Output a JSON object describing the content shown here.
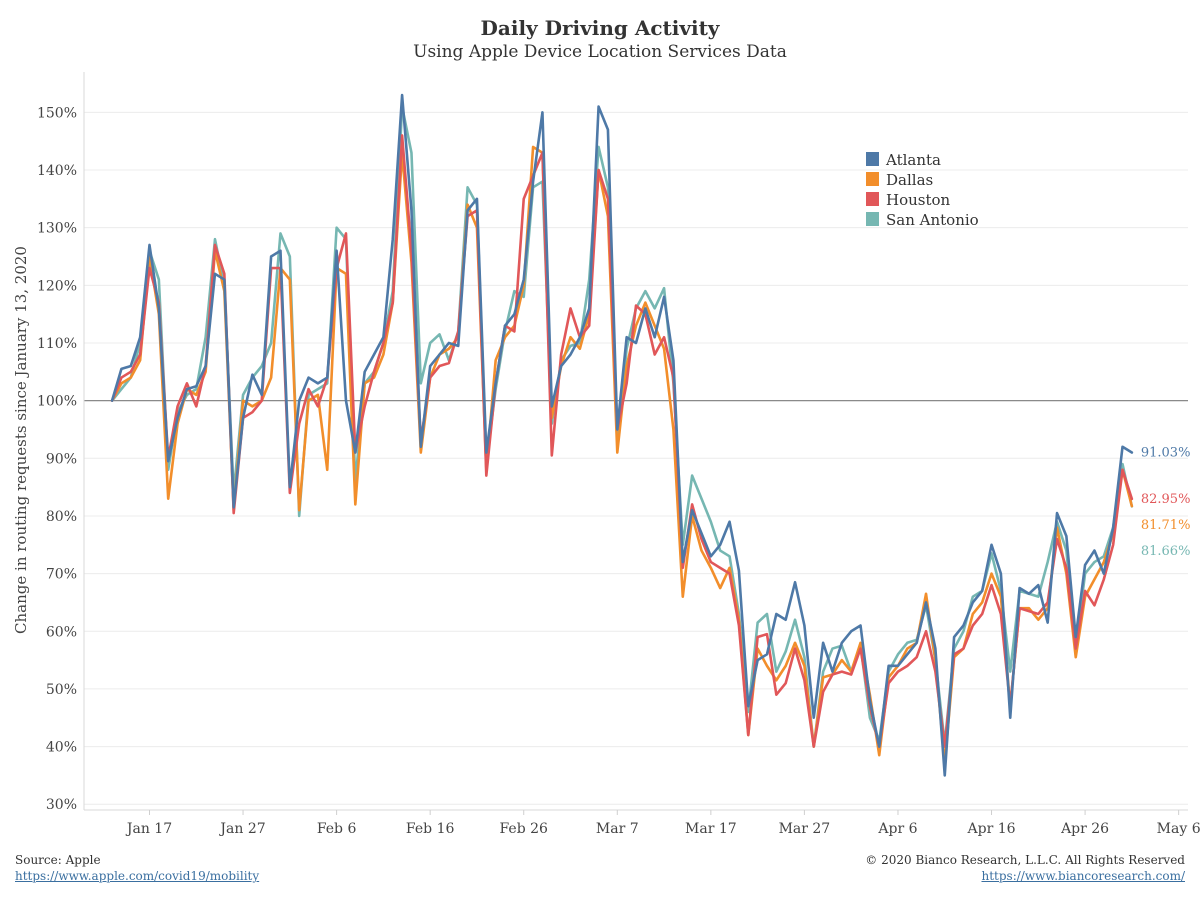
{
  "header": {
    "title": "Daily Driving Activity",
    "subtitle": "Using Apple Device Location Services Data"
  },
  "footer": {
    "source_label": "Source: Apple",
    "source_url": "https://www.apple.com/covid19/mobility",
    "copyright": "© 2020 Bianco Research, L.L.C. All Rights Reserved",
    "site_url": "https://www.biancoresearch.com/"
  },
  "chart_data": {
    "type": "line",
    "title": "Daily Driving Activity",
    "subtitle": "Using Apple Device Location Services Data",
    "ylabel": "Change in routing requests since January 13, 2020",
    "xlabel": "",
    "x_start": "2020-01-13",
    "x_end": "2020-05-03",
    "xlim": [
      "2020-01-10",
      "2020-05-07"
    ],
    "ylim": [
      29,
      157
    ],
    "y_ticks": [
      30,
      40,
      50,
      60,
      70,
      80,
      90,
      100,
      110,
      120,
      130,
      140,
      150
    ],
    "y_tick_labels": [
      "30%",
      "40%",
      "50%",
      "60%",
      "70%",
      "80%",
      "90%",
      "100%",
      "110%",
      "120%",
      "130%",
      "140%",
      "150%"
    ],
    "x_ticks": [
      {
        "date": "2020-01-17",
        "label": "Jan 17"
      },
      {
        "date": "2020-01-27",
        "label": "Jan 27"
      },
      {
        "date": "2020-02-06",
        "label": "Feb 6"
      },
      {
        "date": "2020-02-16",
        "label": "Feb 16"
      },
      {
        "date": "2020-02-26",
        "label": "Feb 26"
      },
      {
        "date": "2020-03-07",
        "label": "Mar 7"
      },
      {
        "date": "2020-03-17",
        "label": "Mar 17"
      },
      {
        "date": "2020-03-27",
        "label": "Mar 27"
      },
      {
        "date": "2020-04-06",
        "label": "Apr 6"
      },
      {
        "date": "2020-04-16",
        "label": "Apr 16"
      },
      {
        "date": "2020-04-26",
        "label": "Apr 26"
      },
      {
        "date": "2020-05-06",
        "label": "May 6"
      }
    ],
    "reference_line": 100,
    "grid": true,
    "legend_position": "top-right",
    "series": [
      {
        "name": "Atlanta",
        "color": "#4e79a7",
        "end_label": "91.03%",
        "values": [
          100,
          105.5,
          106,
          111,
          127,
          116,
          89.5,
          97,
          102,
          102.5,
          106,
          122,
          121,
          81.5,
          97,
          104.5,
          101,
          125,
          126,
          85,
          100,
          104,
          103,
          104,
          126,
          100,
          91,
          105,
          108,
          111,
          128,
          153,
          133,
          92,
          106,
          108,
          110,
          109.5,
          133,
          135,
          91,
          103,
          113,
          115,
          121,
          138,
          150,
          99,
          106,
          108,
          111,
          116,
          151,
          147,
          95,
          111,
          110,
          116,
          111,
          118,
          107,
          72,
          81,
          77,
          73,
          75,
          79,
          70.5,
          47,
          55,
          56,
          63,
          62,
          68.5,
          61,
          45,
          58,
          53,
          58,
          60,
          61,
          48,
          40,
          54,
          54,
          56,
          58,
          65,
          57,
          35,
          59,
          61,
          65,
          67,
          75,
          70,
          45,
          67.5,
          66.5,
          68,
          61.5,
          80.5,
          76.5,
          59,
          71.5,
          74,
          70,
          78,
          92,
          91
        ]
      },
      {
        "name": "Dallas",
        "color": "#f28e2b",
        "end_label": "81.71%",
        "values": [
          100,
          103,
          104,
          107,
          125,
          115,
          83,
          96,
          102,
          101,
          105,
          126,
          119,
          81,
          100,
          99,
          100,
          104,
          123,
          121,
          81,
          100,
          101,
          88,
          123,
          122,
          82,
          103,
          104,
          108,
          117,
          143,
          124,
          91,
          104,
          108,
          109,
          111,
          134,
          130,
          88,
          107,
          111,
          113,
          120,
          144,
          143,
          97,
          106,
          111,
          109,
          115,
          140,
          132,
          91,
          106,
          113,
          117,
          113,
          109,
          95,
          66,
          80,
          74,
          71,
          67.5,
          71,
          62,
          42,
          57,
          54,
          51.5,
          54,
          58,
          54,
          40,
          52,
          52.5,
          55,
          53,
          58,
          49,
          38.5,
          52,
          54,
          57,
          58,
          66.5,
          55,
          37,
          55.5,
          57,
          63,
          65,
          70,
          66,
          47,
          64,
          64,
          62,
          64,
          78,
          70,
          55.5,
          66,
          69,
          72,
          77,
          88,
          81.71
        ]
      },
      {
        "name": "Houston",
        "color": "#e15759",
        "end_label": "82.95%",
        "values": [
          100,
          104,
          105,
          108,
          123,
          117,
          90,
          99,
          103,
          99,
          106,
          127,
          122,
          80.5,
          97,
          98,
          100,
          123,
          123,
          84,
          96,
          102,
          99,
          104,
          123,
          129,
          91,
          99,
          105,
          110,
          117,
          146,
          126,
          93,
          104,
          106,
          106.5,
          112,
          132,
          133,
          87,
          103,
          113,
          112,
          135,
          139,
          143,
          90.5,
          108,
          116,
          111,
          113,
          140,
          135,
          95,
          103,
          116.5,
          115,
          108,
          111,
          104,
          71,
          82,
          76,
          72,
          71,
          70,
          61,
          42,
          59,
          59.5,
          49,
          51,
          57,
          51.5,
          40,
          49.5,
          52.5,
          53,
          52.5,
          57,
          47,
          40,
          51,
          53,
          54,
          55.5,
          60,
          53,
          40,
          56,
          57,
          61,
          63,
          68,
          63,
          47,
          64,
          63.5,
          63,
          65,
          76,
          71,
          57,
          67,
          64.5,
          69,
          75,
          88,
          82.95
        ]
      },
      {
        "name": "San Antonio",
        "color": "#76b7b2",
        "end_label": "81.66%",
        "values": [
          100,
          102,
          104,
          110,
          126,
          121,
          88,
          98,
          101,
          102,
          111,
          128,
          120,
          84,
          101,
          104,
          106,
          110,
          129,
          125,
          80,
          101,
          102,
          103,
          130,
          128,
          86,
          103,
          105,
          110,
          119,
          151,
          143,
          103,
          110,
          111.5,
          107,
          112,
          137,
          134,
          89,
          102,
          112,
          119,
          118,
          137,
          138,
          96,
          107,
          109.5,
          110,
          121,
          144,
          137,
          93,
          109,
          116,
          119,
          116,
          119.5,
          103,
          75,
          87,
          83,
          79,
          74,
          73,
          63,
          46,
          61.5,
          63,
          53,
          56.5,
          62,
          55.5,
          40,
          53,
          57,
          57.5,
          53,
          57.5,
          45,
          41,
          53,
          56,
          58,
          58.5,
          64.5,
          55,
          40.5,
          57,
          60,
          66,
          67,
          73.5,
          67,
          53,
          67,
          66.5,
          66,
          72,
          79,
          74,
          57,
          70,
          72,
          73,
          78,
          89,
          81.66
        ]
      }
    ]
  }
}
